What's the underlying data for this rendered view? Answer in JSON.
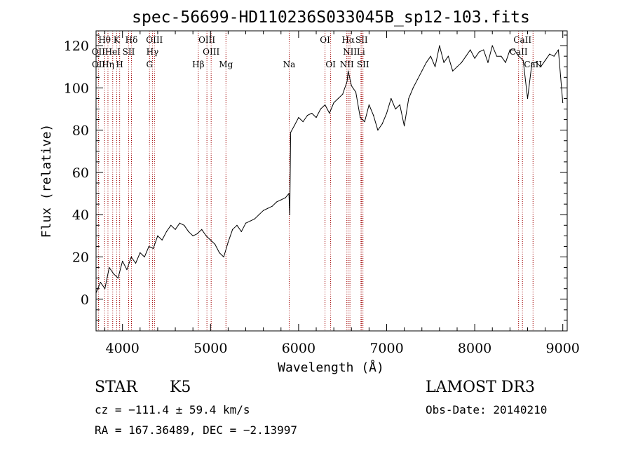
{
  "chart_data": {
    "type": "line",
    "title": "spec-56699-HD110236S033045B_sp12-103.fits",
    "xlabel": "Wavelength (Å)",
    "ylabel": "Flux (relative)",
    "xlim": [
      3700,
      9050
    ],
    "ylim": [
      -15,
      127
    ],
    "xticks": [
      4000,
      5000,
      6000,
      7000,
      8000,
      9000
    ],
    "yticks": [
      0,
      20,
      40,
      60,
      80,
      100,
      120
    ],
    "series": [
      {
        "x": [
          3700,
          3750,
          3800,
          3850,
          3900,
          3950,
          4000,
          4050,
          4100,
          4150,
          4200,
          4250,
          4300,
          4350,
          4400,
          4450,
          4500,
          4550,
          4600,
          4650,
          4700,
          4750,
          4800,
          4850,
          4900,
          4950,
          5000,
          5050,
          5100,
          5150,
          5200,
          5250,
          5300,
          5350,
          5400,
          5450,
          5500,
          5550,
          5600,
          5650,
          5700,
          5750,
          5800,
          5850,
          5890,
          5900,
          5910,
          5950,
          6000,
          6050,
          6100,
          6150,
          6200,
          6250,
          6300,
          6350,
          6400,
          6450,
          6500,
          6550,
          6563,
          6600,
          6650,
          6700,
          6750,
          6800,
          6850,
          6900,
          6950,
          7000,
          7050,
          7100,
          7150,
          7200,
          7250,
          7300,
          7350,
          7400,
          7450,
          7500,
          7550,
          7600,
          7650,
          7700,
          7750,
          7800,
          7850,
          7900,
          7950,
          8000,
          8050,
          8100,
          8150,
          8200,
          8250,
          8300,
          8350,
          8400,
          8450,
          8500,
          8550,
          8600,
          8650,
          8700,
          8750,
          8800,
          8850,
          8900,
          8950,
          9000
        ],
        "y": [
          3,
          8,
          5,
          15,
          12,
          10,
          18,
          14,
          20,
          17,
          22,
          20,
          25,
          24,
          30,
          28,
          32,
          35,
          33,
          36,
          35,
          32,
          30,
          31,
          33,
          30,
          28,
          26,
          22,
          20,
          27,
          33,
          35,
          32,
          36,
          37,
          38,
          40,
          42,
          43,
          44,
          46,
          47,
          48,
          50,
          40,
          79,
          82,
          86,
          84,
          87,
          88,
          86,
          90,
          92,
          88,
          93,
          95,
          97,
          103,
          108,
          101,
          98,
          86,
          84,
          92,
          87,
          80,
          83,
          88,
          95,
          90,
          92,
          82,
          95,
          100,
          104,
          108,
          112,
          115,
          110,
          120,
          112,
          115,
          108,
          110,
          112,
          115,
          118,
          114,
          117,
          118,
          112,
          120,
          115,
          115,
          112,
          118,
          118,
          115,
          113,
          95,
          112,
          112,
          110,
          113,
          116,
          115,
          118,
          93
        ]
      }
    ],
    "line_markers": [
      {
        "label": "Hθ",
        "x": 3797,
        "row": 1
      },
      {
        "label": "K",
        "x": 3934,
        "row": 1
      },
      {
        "label": "Hδ",
        "x": 4102,
        "row": 1
      },
      {
        "label": "OIII",
        "x": 4363,
        "row": 1
      },
      {
        "label": "OIII",
        "x": 4959,
        "row": 1
      },
      {
        "label": "OI",
        "x": 6300,
        "row": 1
      },
      {
        "label": "Hα",
        "x": 6563,
        "row": 1
      },
      {
        "label": "SII",
        "x": 6716,
        "row": 1
      },
      {
        "label": "CaII",
        "x": 8542,
        "row": 1
      },
      {
        "label": "OII",
        "x": 3727,
        "row": 2
      },
      {
        "label": "HeI",
        "x": 3889,
        "row": 2
      },
      {
        "label": "SII",
        "x": 4070,
        "row": 2
      },
      {
        "label": "Hγ",
        "x": 4340,
        "row": 2
      },
      {
        "label": "OIII",
        "x": 5007,
        "row": 2
      },
      {
        "label": "NII",
        "x": 6583,
        "row": 2
      },
      {
        "label": "Li",
        "x": 6708,
        "row": 2
      },
      {
        "label": "CaII",
        "x": 8498,
        "row": 2
      },
      {
        "label": "OII",
        "x": 3729,
        "row": 3
      },
      {
        "label": "Hη",
        "x": 3835,
        "row": 3
      },
      {
        "label": "H",
        "x": 3968,
        "row": 3
      },
      {
        "label": "G",
        "x": 4307,
        "row": 3
      },
      {
        "label": "Hβ",
        "x": 4861,
        "row": 3
      },
      {
        "label": "Mg",
        "x": 5175,
        "row": 3
      },
      {
        "label": "Na",
        "x": 5893,
        "row": 3
      },
      {
        "label": "OI",
        "x": 6364,
        "row": 3
      },
      {
        "label": "NII",
        "x": 6548,
        "row": 3
      },
      {
        "label": "SII",
        "x": 6731,
        "row": 3
      },
      {
        "label": "CaII",
        "x": 8662,
        "row": 3
      }
    ]
  },
  "info": {
    "object_class": "STAR",
    "subclass": "K5",
    "survey": "LAMOST DR3",
    "cz": "cz = −111.4 ± 59.4 km/s",
    "obs_date": "Obs-Date: 20140210",
    "coords": "RA = 167.36489, DEC =  −2.13997"
  },
  "colors": {
    "spectrum": "#000000",
    "marker_line": "#a00000",
    "axes": "#000000"
  }
}
